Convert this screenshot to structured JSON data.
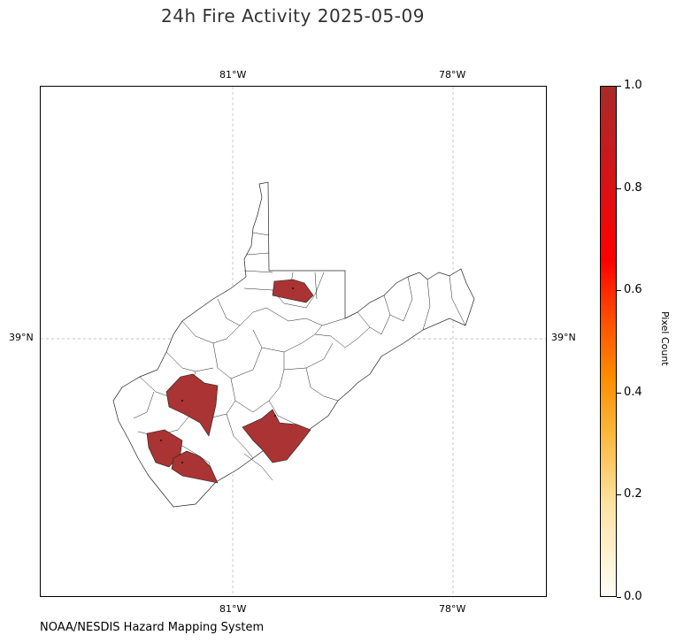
{
  "title": "24h Fire Activity 2025-05-09",
  "footer": "NOAA/NESDIS Hazard Mapping System",
  "map": {
    "lon_labels_top": [
      "81°W",
      "78°W"
    ],
    "lon_labels_bottom": [
      "81°W",
      "78°W"
    ],
    "lat_labels_left": [
      "39°N"
    ],
    "lat_labels_right": [
      "39°N"
    ],
    "gridlines": true,
    "state": "West Virginia",
    "fill_color": "#aa3333",
    "highlighted_counties": [
      {
        "name": "county-north",
        "pixel_count": 1
      },
      {
        "name": "county-west",
        "pixel_count": 1
      },
      {
        "name": "county-southwest",
        "pixel_count": 1
      },
      {
        "name": "county-south",
        "pixel_count": 1
      },
      {
        "name": "county-southeast",
        "pixel_count": 1
      }
    ]
  },
  "colorbar": {
    "label": "Pixel Count",
    "ticks": [
      "0.0",
      "0.2",
      "0.4",
      "0.6",
      "0.8",
      "1.0"
    ],
    "range": [
      0,
      1
    ],
    "colors": [
      "#fffef6",
      "#fde3a2",
      "#fbb73b",
      "#ff8c00",
      "#ff0000",
      "#a82a2a"
    ]
  }
}
